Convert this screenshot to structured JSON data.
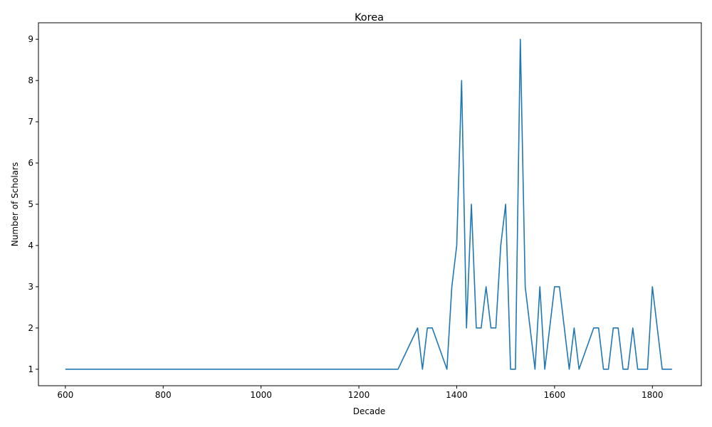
{
  "chart_data": {
    "type": "line",
    "title": "Korea",
    "xlabel": "Decade",
    "ylabel": "Number of Scholars",
    "xlim": [
      545,
      1900
    ],
    "ylim": [
      0.6,
      9.4
    ],
    "xticks": [
      600,
      800,
      1000,
      1200,
      1400,
      1600,
      1800
    ],
    "yticks": [
      1,
      2,
      3,
      4,
      5,
      6,
      7,
      8,
      9
    ],
    "grid": false,
    "legend": "none",
    "series": [
      {
        "color": "#1f77b4",
        "x": [
          600,
          1280,
          1320,
          1330,
          1340,
          1350,
          1380,
          1390,
          1400,
          1410,
          1420,
          1430,
          1440,
          1450,
          1460,
          1470,
          1480,
          1490,
          1500,
          1510,
          1520,
          1530,
          1540,
          1550,
          1560,
          1570,
          1580,
          1590,
          1600,
          1610,
          1630,
          1640,
          1650,
          1680,
          1690,
          1700,
          1710,
          1720,
          1730,
          1740,
          1750,
          1760,
          1770,
          1790,
          1800,
          1820,
          1840
        ],
        "y": [
          1,
          1,
          2,
          1,
          2,
          2,
          1,
          3,
          4,
          8,
          2,
          5,
          2,
          2,
          3,
          2,
          2,
          4,
          5,
          1,
          1,
          9,
          3,
          2,
          1,
          3,
          1,
          2,
          3,
          3,
          1,
          2,
          1,
          2,
          2,
          1,
          1,
          2,
          2,
          1,
          1,
          2,
          1,
          1,
          3,
          1,
          1
        ]
      }
    ]
  }
}
